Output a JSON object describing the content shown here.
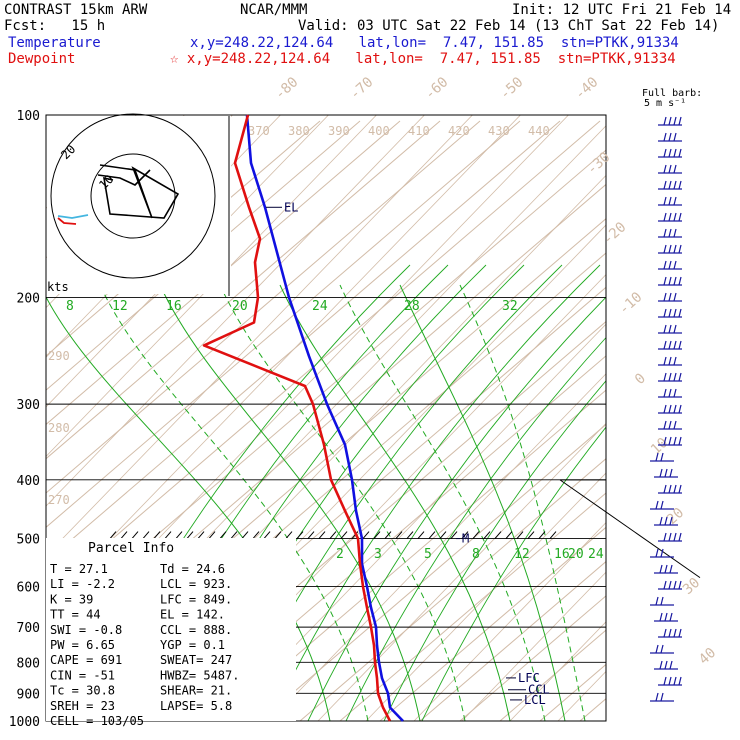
{
  "header": {
    "line1_left": "CONTRAST 15km ARW",
    "line1_center": "NCAR/MMM",
    "line1_right": "Init: 12 UTC Fri 21 Feb 14",
    "line2_left": "Fcst:   15 h",
    "line2_right": "Valid: 03 UTC Sat 22 Feb 14 (13 ChT Sat 22 Feb 14)",
    "temp_label": "Temperature",
    "temp_info": "x,y=248.22,124.64   lat,lon=  7.47, 151.85  stn=PTKK,91334",
    "dew_label": "Dewpoint",
    "dew_info": "☆ x,y=248.22,124.64   lat,lon=  7.47, 151.85  stn=PTKK,91334"
  },
  "colors": {
    "temperature": "#1010e0",
    "dewpoint": "#e01010",
    "theta": "#d2bca8",
    "mixing": "#22aa22",
    "hodo": "#000000"
  },
  "parcel": {
    "title": "Parcel Info",
    "rows": [
      {
        "l": "T  =    27.1",
        "r": "Td =  24.6"
      },
      {
        "l": "LI =    -2.2",
        "r": "LCL =  923."
      },
      {
        "l": "K  =      39",
        "r": "LFC =  849."
      },
      {
        "l": "TT =      44",
        "r": "EL  =  142."
      },
      {
        "l": "SWI =   -0.8",
        "r": "CCL =  888."
      },
      {
        "l": "PW =    6.65",
        "r": "YGP =   0.1"
      },
      {
        "l": "CAPE =   691",
        "r": "SWEAT=  247"
      },
      {
        "l": "CIN =    -51",
        "r": "HWBZ= 5487."
      },
      {
        "l": "Tc =    30.8",
        "r": "SHEAR=  21."
      },
      {
        "l": "SREH =    23",
        "r": "LAPSE=   5.8"
      },
      {
        "l": "CELL = 103/05",
        "r": ""
      }
    ]
  },
  "barb_label_1": "Full barb:",
  "barb_label_2": "5 m s⁻¹",
  "hodo": {
    "label_kts": "kts",
    "ring_20": "20",
    "ring_10": "10"
  },
  "chart_data": {
    "type": "line",
    "pressure_levels": [
      "100",
      "200",
      "300",
      "400",
      "500",
      "600",
      "700",
      "800",
      "900",
      "1000"
    ],
    "theta_labels": [
      "370",
      "380",
      "390",
      "400",
      "410",
      "420",
      "430",
      "440"
    ],
    "theta_side_labels": [
      "290",
      "280",
      "270"
    ],
    "iso_top_labels": [
      "-80",
      "-70",
      "-60",
      "-50",
      "-40"
    ],
    "iso_right_labels": [
      "-30",
      "-20",
      "-10",
      "0",
      "10",
      "20",
      "30",
      "40"
    ],
    "mix_upper_labels": [
      "8",
      "12",
      "16",
      "20",
      "24",
      "28",
      "32"
    ],
    "mix_lower_labels": [
      "2",
      "3",
      "5",
      "8",
      "12",
      "16",
      "20",
      "24"
    ],
    "levels": [
      {
        "marker": "EL",
        "p": "142"
      },
      {
        "marker": "M",
        "p": "500"
      },
      {
        "marker": "LFC",
        "p": "849"
      },
      {
        "marker": "CCL",
        "p": "888"
      },
      {
        "marker": "LCL",
        "p": "923"
      }
    ],
    "series": [
      {
        "name": "Temperature",
        "points": [
          [
            100,
            247
          ],
          [
            120,
            251
          ],
          [
            142,
            265
          ],
          [
            200,
            289
          ],
          [
            250,
            309
          ],
          [
            300,
            327
          ],
          [
            350,
            345
          ],
          [
            400,
            352
          ],
          [
            450,
            356
          ],
          [
            500,
            362
          ],
          [
            550,
            362
          ],
          [
            600,
            367
          ],
          [
            650,
            371
          ],
          [
            700,
            376
          ],
          [
            750,
            377
          ],
          [
            800,
            379
          ],
          [
            850,
            382
          ],
          [
            900,
            388
          ],
          [
            950,
            390
          ],
          [
            1000,
            403
          ]
        ]
      },
      {
        "name": "Dewpoint",
        "points": [
          [
            100,
            248
          ],
          [
            120,
            235
          ],
          [
            142,
            249
          ],
          [
            160,
            260
          ],
          [
            175,
            255
          ],
          [
            200,
            258
          ],
          [
            220,
            254
          ],
          [
            240,
            204
          ],
          [
            280,
            305
          ],
          [
            300,
            313
          ],
          [
            350,
            324
          ],
          [
            400,
            331
          ],
          [
            450,
            345
          ],
          [
            500,
            358
          ],
          [
            550,
            360
          ],
          [
            600,
            363
          ],
          [
            650,
            367
          ],
          [
            700,
            371
          ],
          [
            750,
            374
          ],
          [
            800,
            375
          ],
          [
            850,
            377
          ],
          [
            900,
            378
          ],
          [
            950,
            383
          ],
          [
            1000,
            390
          ]
        ]
      }
    ]
  }
}
